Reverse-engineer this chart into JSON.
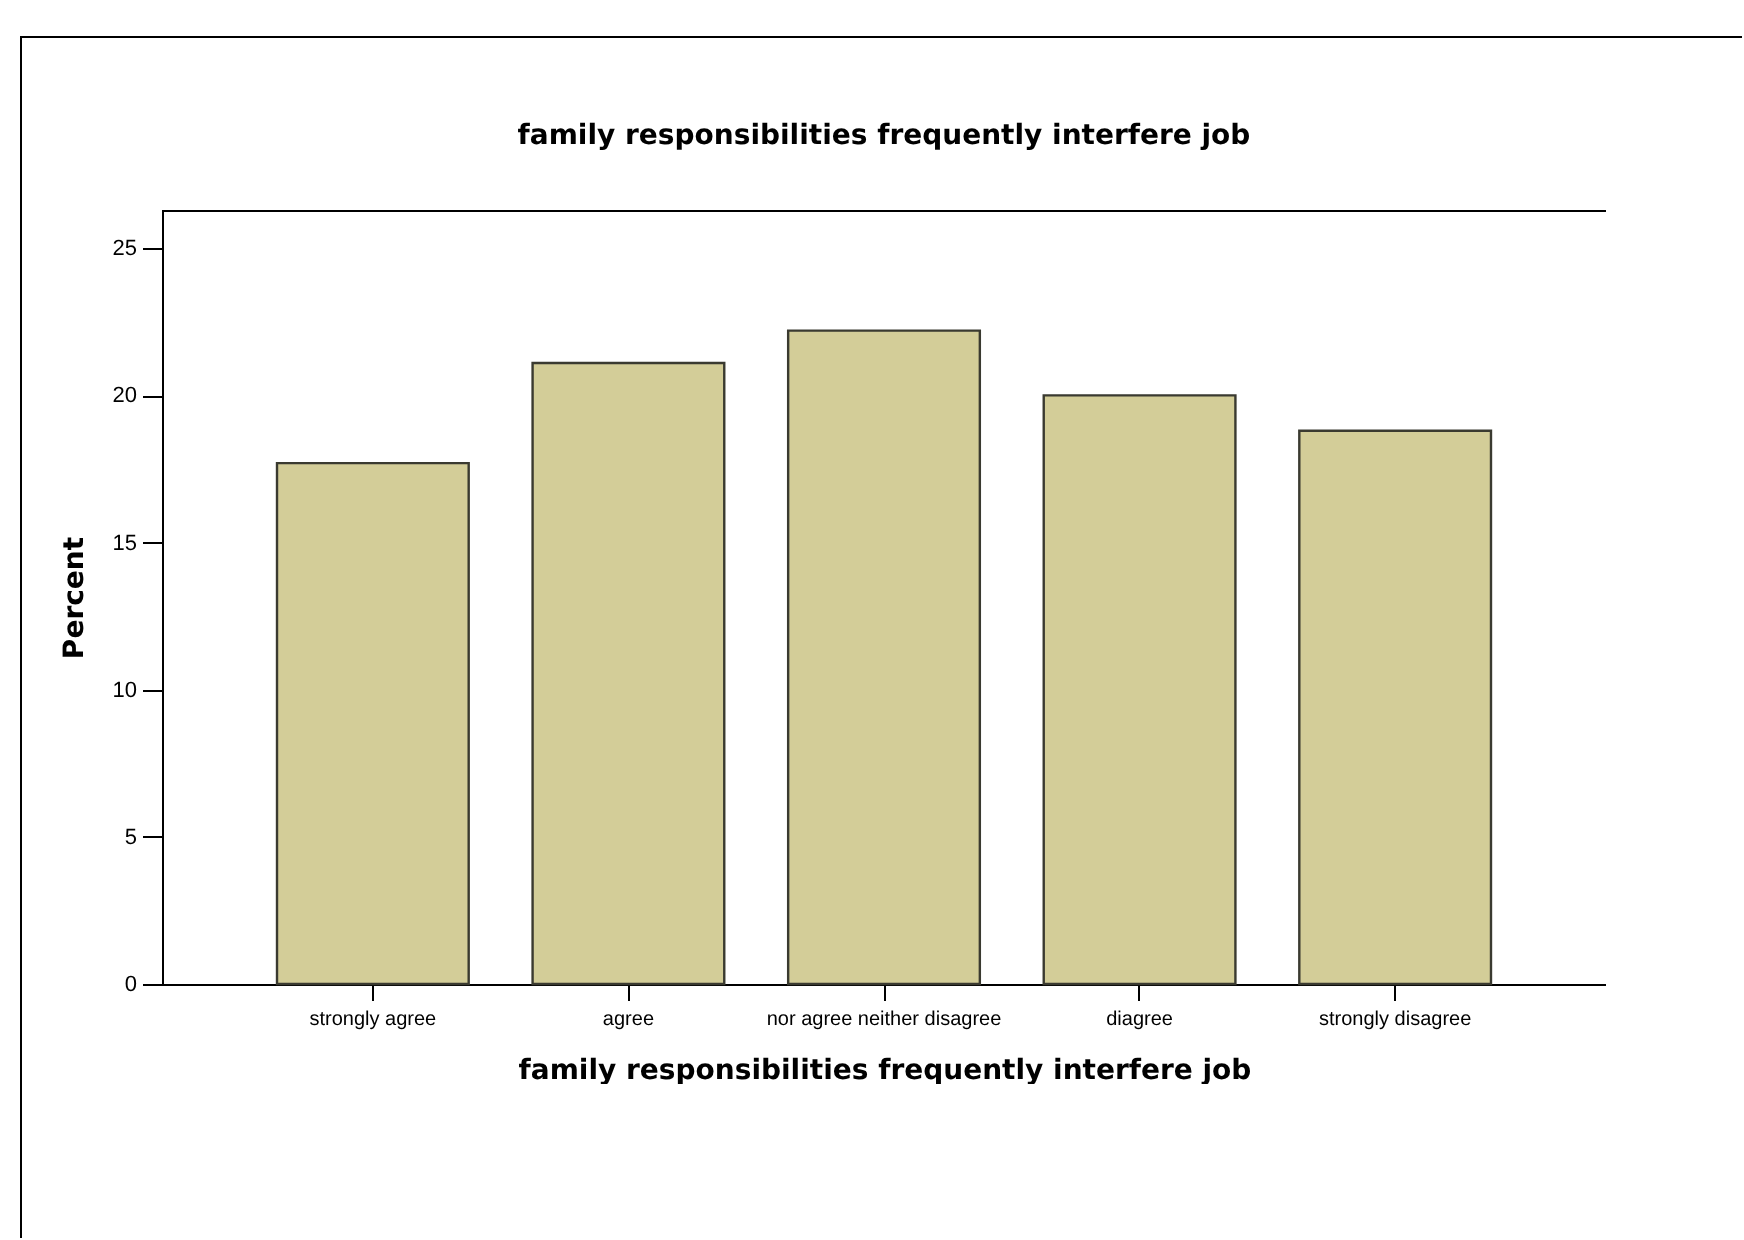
{
  "chart_data": {
    "type": "bar",
    "title": "family responsibilities frequently interfere job",
    "xlabel": "family responsibilities frequently interfere job",
    "ylabel": "Percent",
    "categories": [
      "strongly agree",
      "agree",
      "nor agree neither disagree",
      "diagree",
      "strongly disagree"
    ],
    "values": [
      17.7,
      21.1,
      22.2,
      20.0,
      18.8
    ],
    "color": "#d3cd98",
    "ylim": [
      0,
      26.3
    ],
    "yticks": [
      0,
      5,
      10,
      15,
      20,
      25
    ],
    "grid": false
  }
}
